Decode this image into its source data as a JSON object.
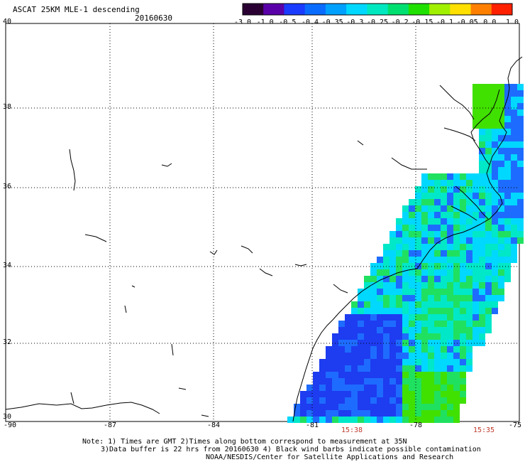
{
  "title": "ASCAT 25KM MLE-1 descending",
  "date": "20160630",
  "colorbar": {
    "labels": [
      "-3.0",
      "-1.0",
      "-0.5",
      "-0.4",
      "-0.35",
      "-0.3",
      "-0.25",
      "-0.2",
      "-0.15",
      "-0.1",
      "-0.05",
      "0.0",
      "1.0"
    ],
    "colors": [
      "#2a0033",
      "#5a00a8",
      "#1a3cff",
      "#0a6cff",
      "#00a0ff",
      "#00d8ff",
      "#00e8c0",
      "#00e070",
      "#20e000",
      "#a0f000",
      "#ffe000",
      "#ff8000",
      "#ff2000"
    ]
  },
  "map": {
    "lat_labels": [
      "40",
      "38",
      "36",
      "34",
      "32",
      "30"
    ],
    "lon_labels": [
      "-90",
      "-87",
      "-84",
      "-81",
      "-78",
      "-75"
    ],
    "times": [
      {
        "label": "15:38"
      },
      {
        "label": "15:35"
      }
    ],
    "colors": {
      "deep_blue": "#1e3cf0",
      "blue": "#1e6cff",
      "cyan": "#00d8ff",
      "aqua": "#00e8c8",
      "green": "#20e060",
      "lime": "#40e000",
      "orange": "#ff9000"
    }
  },
  "notes": {
    "line1": "Note: 1) Times are GMT 2)Times along bottom correspond to measurement at 35N",
    "line2": "3)Data buffer is 22 hrs from 20160630 4) Black wind barbs indicate possible contamination",
    "line3": "NOAA/NESDIS/Center for Satellite Applications and Research"
  }
}
